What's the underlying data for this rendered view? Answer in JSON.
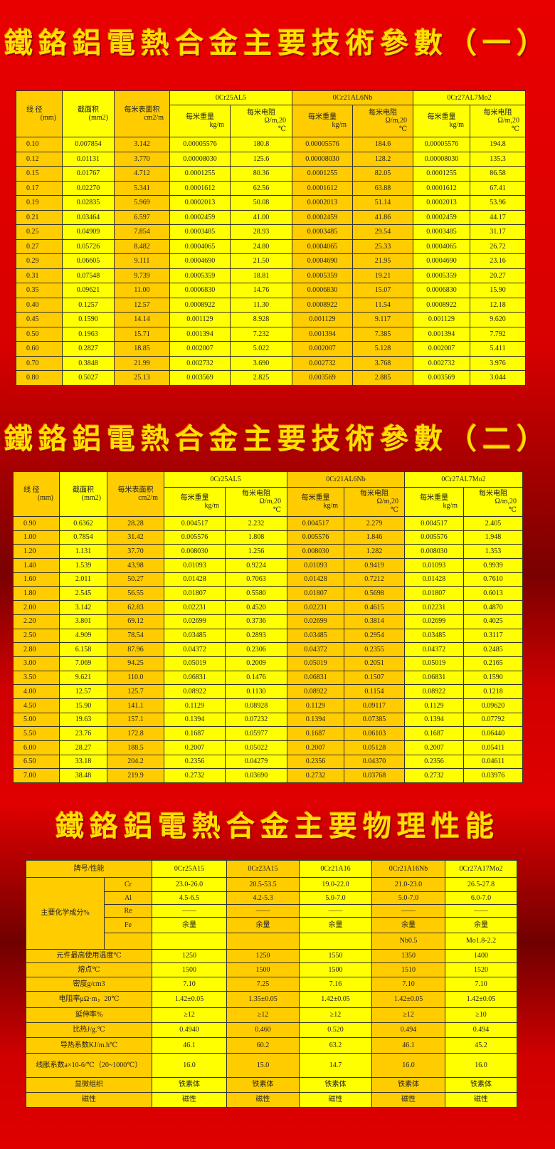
{
  "titles": [
    "鐵鉻鋁電熱合金主要技術參數（一）",
    "鐵鉻鋁電熱合金主要技術參數（二）",
    "鐵鉻鋁電熱合金主要物理性能"
  ],
  "param_header": {
    "diameter": "线 径",
    "diameter_unit": "(mm)",
    "area": "截面积",
    "area_unit": "(mm2)",
    "surface": "每米表面积",
    "surface_unit": "cm2/m",
    "grades": [
      "0Cr25AL5",
      "0Cr21AL6Nb",
      "0Cr27AL7Mo2"
    ],
    "weight": "每米重量",
    "weight_unit": "kg/m",
    "resist": "每米电阻",
    "resist_unit": "Ω/m,20",
    "resist_unit2": "℃"
  },
  "table1": [
    [
      "0.10",
      "0.007854",
      "3.142",
      "0.00005576",
      "180.8",
      "0.00005576",
      "184.6",
      "0.00005576",
      "194.8"
    ],
    [
      "0.12",
      "0.01131",
      "3.770",
      "0.00008030",
      "125.6",
      "0.00008030",
      "128.2",
      "0.00008030",
      "135.3"
    ],
    [
      "0.15",
      "0.01767",
      "4.712",
      "0.0001255",
      "80.36",
      "0.0001255",
      "82.05",
      "0.0001255",
      "86.58"
    ],
    [
      "0.17",
      "0.02270",
      "5.341",
      "0.0001612",
      "62.56",
      "0.0001612",
      "63.88",
      "0.0001612",
      "67.41"
    ],
    [
      "0.19",
      "0.02835",
      "5.969",
      "0.0002013",
      "50.08",
      "0.0002013",
      "51.14",
      "0.0002013",
      "53.96"
    ],
    [
      "0.21",
      "0.03464",
      "6.597",
      "0.0002459",
      "41.00",
      "0.0002459",
      "41.86",
      "0.0002459",
      "44.17"
    ],
    [
      "0.25",
      "0.04909",
      "7.854",
      "0.0003485",
      "28.93",
      "0.0003485",
      "29.54",
      "0.0003485",
      "31.17"
    ],
    [
      "0.27",
      "0.05726",
      "8.482",
      "0.0004065",
      "24.80",
      "0.0004065",
      "25.33",
      "0.0004065",
      "26.72"
    ],
    [
      "0.29",
      "0.06605",
      "9.111",
      "0.0004690",
      "21.50",
      "0.0004690",
      "21.95",
      "0.0004690",
      "23.16"
    ],
    [
      "0.31",
      "0.07548",
      "9.739",
      "0.0005359",
      "18.81",
      "0.0005359",
      "19.21",
      "0.0005359",
      "20.27"
    ],
    [
      "0.35",
      "0.09621",
      "11.00",
      "0.0006830",
      "14.76",
      "0.0006830",
      "15.07",
      "0.0006830",
      "15.90"
    ],
    [
      "0.40",
      "0.1257",
      "12.57",
      "0.0008922",
      "11.30",
      "0.0008922",
      "11.54",
      "0.0008922",
      "12.18"
    ],
    [
      "0.45",
      "0.1590",
      "14.14",
      "0.001129",
      "8.928",
      "0.001129",
      "9.117",
      "0.001129",
      "9.620"
    ],
    [
      "0.50",
      "0.1963",
      "15.71",
      "0.001394",
      "7.232",
      "0.001394",
      "7.385",
      "0.001394",
      "7.792"
    ],
    [
      "0.60",
      "0.2827",
      "18.85",
      "0.002007",
      "5.022",
      "0.002007",
      "5.128",
      "0.002007",
      "5.411"
    ],
    [
      "0.70",
      "0.3848",
      "21.99",
      "0.002732",
      "3.690",
      "0.002732",
      "3.768",
      "0.002732",
      "3.976"
    ],
    [
      "0.80",
      "0.5027",
      "25.13",
      "0.003569",
      "2.825",
      "0.003569",
      "2.885",
      "0.003569",
      "3.044"
    ]
  ],
  "table2": [
    [
      "0.90",
      "0.6362",
      "28.28",
      "0.004517",
      "2.232",
      "0.004517",
      "2.279",
      "0.004517",
      "2.405"
    ],
    [
      "1.00",
      "0.7854",
      "31.42",
      "0.005576",
      "1.808",
      "0.005576",
      "1.846",
      "0.005576",
      "1.948"
    ],
    [
      "1.20",
      "1.131",
      "37.70",
      "0.008030",
      "1.256",
      "0.008030",
      "1.282",
      "0.008030",
      "1.353"
    ],
    [
      "1.40",
      "1.539",
      "43.98",
      "0.01093",
      "0.9224",
      "0.01093",
      "0.9419",
      "0.01093",
      "0.9939"
    ],
    [
      "1.60",
      "2.011",
      "50.27",
      "0.01428",
      "0.7063",
      "0.01428",
      "0.7212",
      "0.01428",
      "0.7610"
    ],
    [
      "1.80",
      "2.545",
      "56.55",
      "0.01807",
      "0.5580",
      "0.01807",
      "0.5698",
      "0.01807",
      "0.6013"
    ],
    [
      "2.00",
      "3.142",
      "62.83",
      "0.02231",
      "0.4520",
      "0.02231",
      "0.4615",
      "0.02231",
      "0.4870"
    ],
    [
      "2.20",
      "3.801",
      "69.12",
      "0.02699",
      "0.3736",
      "0.02699",
      "0.3814",
      "0.02699",
      "0.4025"
    ],
    [
      "2.50",
      "4.909",
      "78.54",
      "0.03485",
      "0.2893",
      "0.03485",
      "0.2954",
      "0.03485",
      "0.3117"
    ],
    [
      "2.80",
      "6.158",
      "87.96",
      "0.04372",
      "0.2306",
      "0.04372",
      "0.2355",
      "0.04372",
      "0.2485"
    ],
    [
      "3.00",
      "7.069",
      "94.25",
      "0.05019",
      "0.2009",
      "0.05019",
      "0.2051",
      "0.05019",
      "0.2165"
    ],
    [
      "3.50",
      "9.621",
      "110.0",
      "0.06831",
      "0.1476",
      "0.06831",
      "0.1507",
      "0.06831",
      "0.1590"
    ],
    [
      "4.00",
      "12.57",
      "125.7",
      "0.08922",
      "0.1130",
      "0.08922",
      "0.1154",
      "0.08922",
      "0.1218"
    ],
    [
      "4.50",
      "15.90",
      "141.1",
      "0.1129",
      "0.08928",
      "0.1129",
      "0.09117",
      "0.1129",
      "0.09620"
    ],
    [
      "5.00",
      "19.63",
      "157.1",
      "0.1394",
      "0.07232",
      "0.1394",
      "0.07385",
      "0.1394",
      "0.07792"
    ],
    [
      "5.50",
      "23.76",
      "172.8",
      "0.1687",
      "0.05977",
      "0.1687",
      "0.06103",
      "0.1687",
      "0.06440"
    ],
    [
      "6.00",
      "28.27",
      "188.5",
      "0.2007",
      "0.05022",
      "0.2007",
      "0.05128",
      "0.2007",
      "0.05411"
    ],
    [
      "6.50",
      "33.18",
      "204.2",
      "0.2356",
      "0.04279",
      "0.2356",
      "0.04370",
      "0.2356",
      "0.04611"
    ],
    [
      "7.00",
      "38.48",
      "219.9",
      "0.2732",
      "0.03690",
      "0.2732",
      "0.03768",
      "0.2732",
      "0.03976"
    ]
  ],
  "table3": {
    "header_label": "牌号/性能",
    "grades": [
      "0Cr25A15",
      "0Cr23A15",
      "0Cr21A16",
      "0Cr21A16Nb",
      "0Cr27A17Mo2"
    ],
    "chem_label": "主要化学成分%",
    "chem_rows": [
      [
        "Cr",
        "23.0-26.0",
        "20.5-53.5",
        "19.0-22.0",
        "21.0-23.0",
        "26.5-27.8"
      ],
      [
        "Al",
        "4.5-6.5",
        "4.2-5.3",
        "5.0-7.0",
        "5.0-7.0",
        "6.0-7.0"
      ],
      [
        "Re",
        "——",
        "——",
        "——",
        "——",
        "——"
      ],
      [
        "Fe",
        "余量",
        "余量",
        "余量",
        "余量",
        "余量"
      ],
      [
        "",
        "",
        "",
        "",
        "Nb0.5",
        "Mo1.8-2.2"
      ]
    ],
    "rows": [
      [
        "元件最高使用温度℃",
        "1250",
        "1250",
        "1550",
        "1350",
        "1400"
      ],
      [
        "熔点℃",
        "1500",
        "1500",
        "1500",
        "1510",
        "1520"
      ],
      [
        "密度g/cm3",
        "7.10",
        "7.25",
        "7.16",
        "7.10",
        "7.10"
      ],
      [
        "电阻率μΩ·m，20℃",
        "1.42±0.05",
        "1.35±0.05",
        "1.42±0.05",
        "1.42±0.05",
        "1.42±0.05"
      ],
      [
        "延伸率%",
        "≥12",
        "≥12",
        "≥12",
        "≥12",
        "≥10"
      ],
      [
        "比热J/g.℃",
        "0.4940",
        "0.460",
        "0.520",
        "0.494",
        "0.494"
      ],
      [
        "导热系数KJ/m.h℃",
        "46.1",
        "60.2",
        "63.2",
        "46.1",
        "45.2"
      ],
      [
        "线胀系数a×10-6/℃（20~1000℃）",
        "16.0",
        "15.0",
        "14.7",
        "16.0",
        "16.0"
      ],
      [
        "显微组织",
        "铁素体",
        "铁素体",
        "铁素体",
        "铁素体",
        "铁素体"
      ],
      [
        "磁性",
        "磁性",
        "磁性",
        "磁性",
        "磁性",
        "磁性"
      ]
    ]
  },
  "colors": {
    "yellow": "#ffff00",
    "orange": "#ffcc00",
    "background": "#e00000",
    "title": "#ffe000"
  }
}
